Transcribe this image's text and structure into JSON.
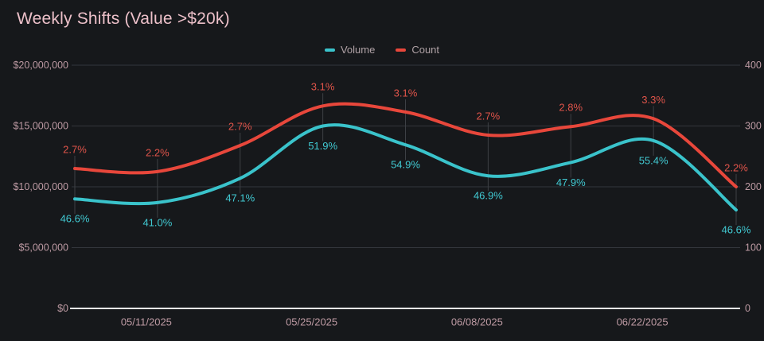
{
  "title": "Weekly Shifts (Value >$20k)",
  "legend": {
    "items": [
      {
        "label": "Volume"
      },
      {
        "label": "Count"
      }
    ]
  },
  "colors": {
    "background": "#16181b",
    "title_text": "#ecc0c9",
    "axis_text": "#bd9aa3",
    "legend_text": "#b0a2a6",
    "grid_line": "#33363c",
    "zero_axis_line": "#edeff1",
    "point_connector": "#3d4045",
    "volume_accent": "#3ac3cb",
    "count_accent": "#e8473b"
  },
  "chart_data": {
    "type": "line",
    "title": "Weekly Shifts (Value >$20k)",
    "legend_position": "top-center",
    "grid": "horizontal-only",
    "num_points": 9,
    "x_tick_labels": [
      "05/11/2025",
      "05/25/2025",
      "06/08/2025",
      "06/22/2025"
    ],
    "x_tick_point_indices": [
      1,
      3,
      5,
      7
    ],
    "left_axis": {
      "tick_labels": [
        "$0",
        "$5,000,000",
        "$10,000,000",
        "$15,000,000",
        "$20,000,000"
      ],
      "min": 0,
      "max": 20000000
    },
    "right_axis": {
      "tick_labels": [
        "0",
        "100",
        "200",
        "300",
        "400"
      ],
      "min": 0,
      "max": 400
    },
    "series": [
      {
        "name": "Volume",
        "axis": "left",
        "color": "#3ac3cb",
        "label_color": "#41c9d2",
        "values": [
          9000000,
          8700000,
          10700000,
          15000000,
          13450000,
          10900000,
          12000000,
          13800000,
          8100000
        ],
        "point_labels": [
          "46.6%",
          "41.0%",
          "47.1%",
          "51.9%",
          "54.9%",
          "46.9%",
          "47.9%",
          "55.4%",
          "46.6%"
        ]
      },
      {
        "name": "Count",
        "axis": "right",
        "color": "#e8473b",
        "label_color": "#e0544a",
        "values": [
          230,
          225,
          268,
          333,
          323,
          285,
          299,
          312,
          200
        ],
        "point_labels": [
          "2.7%",
          "2.2%",
          "2.7%",
          "3.1%",
          "3.1%",
          "2.7%",
          "2.8%",
          "3.3%",
          "2.2%"
        ]
      }
    ]
  }
}
